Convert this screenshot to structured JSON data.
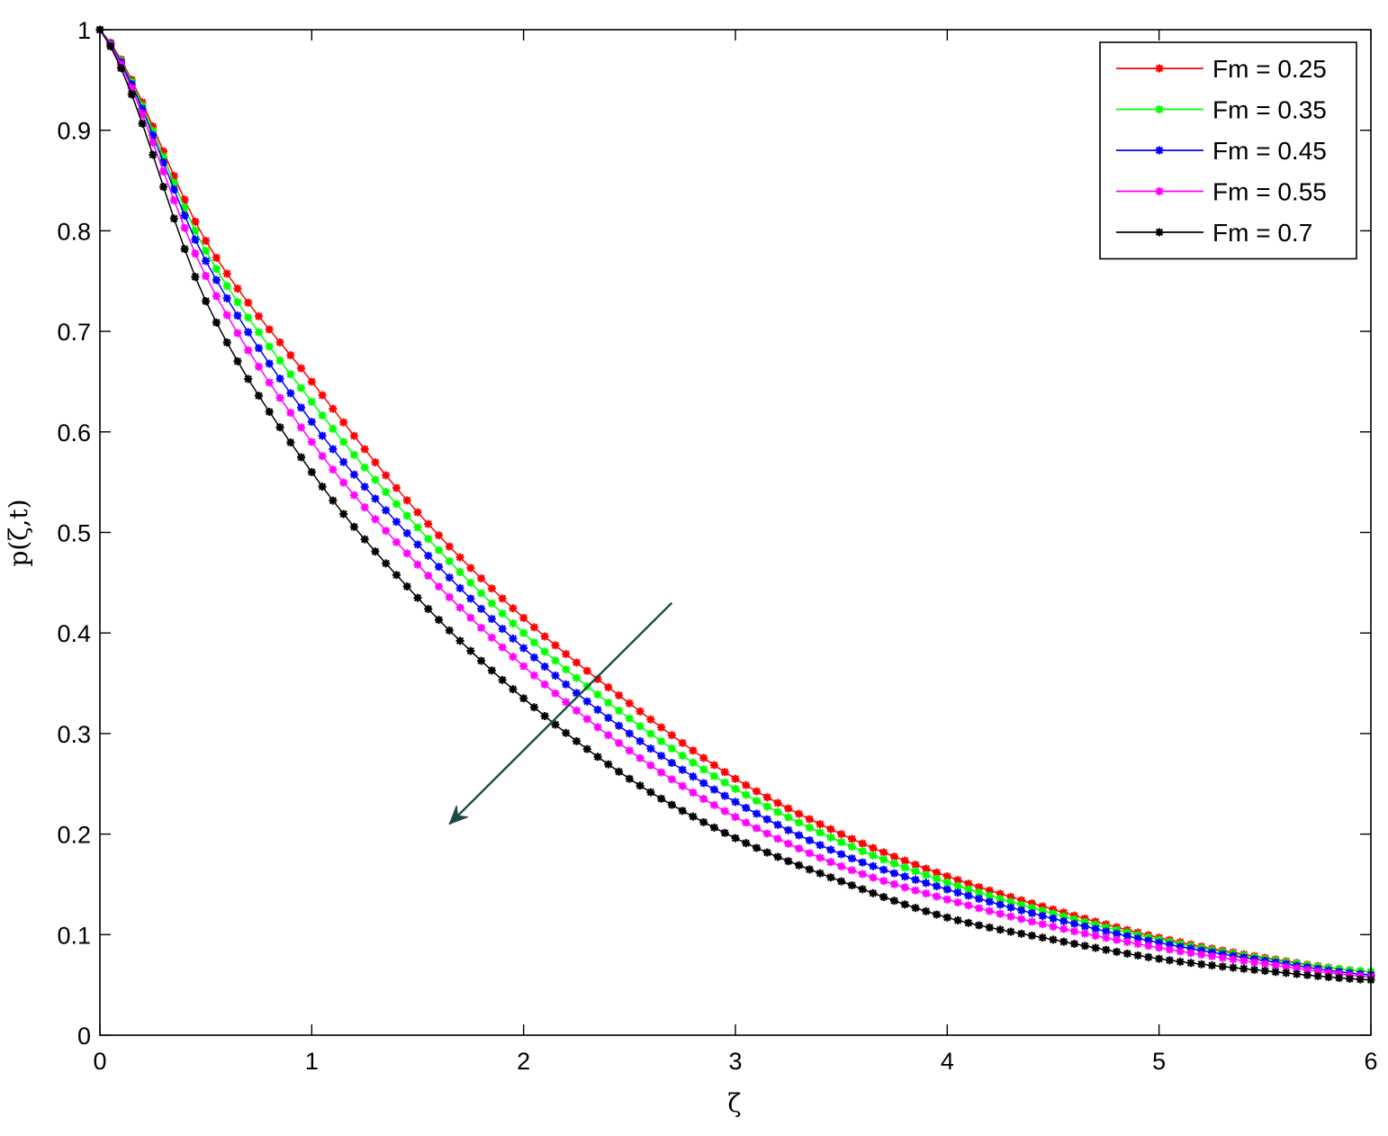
{
  "chart_data": {
    "type": "line",
    "title": "",
    "xlabel": "ζ",
    "ylabel": "p(ζ,t)",
    "xlim": [
      0,
      6
    ],
    "ylim": [
      0,
      1
    ],
    "xticks": [
      0,
      1,
      2,
      3,
      4,
      5,
      6
    ],
    "yticks": [
      0,
      0.1,
      0.2,
      0.3,
      0.4,
      0.5,
      0.6,
      0.7,
      0.8,
      0.9,
      1
    ],
    "grid": false,
    "legend": "top-right",
    "marker": "star",
    "x": [
      0,
      0.5,
      1,
      1.5,
      2,
      2.5,
      3,
      3.5,
      4,
      4.5,
      5,
      5.5,
      6
    ],
    "series": [
      {
        "name": "Fm = 0.25",
        "color": "#ff0000",
        "values": [
          1.0,
          0.79,
          0.65,
          0.52,
          0.415,
          0.33,
          0.255,
          0.2,
          0.158,
          0.125,
          0.097,
          0.077,
          0.063
        ]
      },
      {
        "name": "Fm = 0.35",
        "color": "#00ff00",
        "values": [
          1.0,
          0.78,
          0.63,
          0.505,
          0.4,
          0.315,
          0.245,
          0.192,
          0.152,
          0.121,
          0.095,
          0.076,
          0.063
        ]
      },
      {
        "name": "Fm = 0.45",
        "color": "#0000ff",
        "values": [
          1.0,
          0.77,
          0.61,
          0.488,
          0.385,
          0.3,
          0.232,
          0.18,
          0.145,
          0.116,
          0.092,
          0.074,
          0.06
        ]
      },
      {
        "name": "Fm = 0.55",
        "color": "#ff00ff",
        "values": [
          1.0,
          0.755,
          0.59,
          0.468,
          0.367,
          0.283,
          0.217,
          0.168,
          0.135,
          0.108,
          0.087,
          0.071,
          0.058
        ]
      },
      {
        "name": "Fm = 0.7",
        "color": "#000000",
        "values": [
          1.0,
          0.73,
          0.56,
          0.435,
          0.335,
          0.255,
          0.196,
          0.153,
          0.117,
          0.095,
          0.076,
          0.064,
          0.055
        ]
      }
    ],
    "annotation": {
      "type": "arrow",
      "color": "#1b4a44",
      "from": [
        2.7,
        0.43
      ],
      "to": [
        1.65,
        0.21
      ]
    }
  }
}
